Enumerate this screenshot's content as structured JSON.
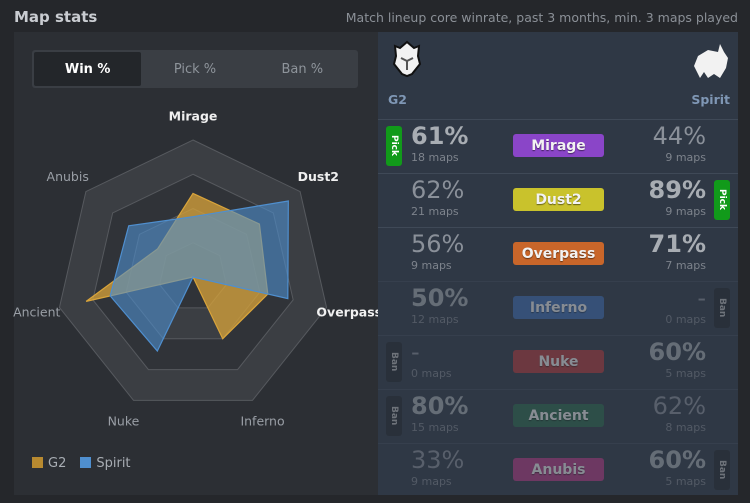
{
  "header": {
    "title": "Map stats",
    "subtitle": "Match lineup core winrate, past 3 months, min. 3 maps played"
  },
  "tabs": [
    {
      "label": "Win %",
      "active": true
    },
    {
      "label": "Pick %"
    },
    {
      "label": "Ban %"
    }
  ],
  "teams": {
    "left": "G2",
    "right": "Spirit"
  },
  "chart_data": {
    "type": "radar",
    "axes": [
      "Mirage",
      "Dust2",
      "Overpass",
      "Inferno",
      "Nuke",
      "Ancient",
      "Anubis"
    ],
    "range": [
      0,
      100
    ],
    "rings": 4,
    "series": [
      {
        "name": "G2",
        "color": "#d9a43a",
        "values": [
          61,
          62,
          56,
          50,
          0,
          80,
          33
        ]
      },
      {
        "name": "Spirit",
        "color": "#4f8fcf",
        "values": [
          44,
          89,
          71,
          0,
          60,
          62,
          60
        ]
      }
    ],
    "legend": "bottom-left"
  },
  "rows": [
    {
      "map": "Mirage",
      "color": "#8a45c8",
      "left": {
        "pct": "61%",
        "maps": "18 maps",
        "best": true,
        "badge": "Pick"
      },
      "right": {
        "pct": "44%",
        "maps": "9 maps"
      },
      "dim": false
    },
    {
      "map": "Dust2",
      "color": "#c9c22c",
      "left": {
        "pct": "62%",
        "maps": "21 maps"
      },
      "right": {
        "pct": "89%",
        "maps": "9 maps",
        "best": true,
        "badge": "Pick"
      },
      "dim": false
    },
    {
      "map": "Overpass",
      "color": "#c9662a",
      "left": {
        "pct": "56%",
        "maps": "9 maps"
      },
      "right": {
        "pct": "71%",
        "maps": "7 maps",
        "best": true
      },
      "dim": false
    },
    {
      "map": "Inferno",
      "color": "#3f6fb5",
      "left": {
        "pct": "50%",
        "maps": "12 maps",
        "best": true
      },
      "right": {
        "pct": "-",
        "maps": "0 maps",
        "badge": "Ban"
      },
      "dim": true
    },
    {
      "map": "Nuke",
      "color": "#b63a3a",
      "left": {
        "pct": "-",
        "maps": "0 maps",
        "badge": "Ban"
      },
      "right": {
        "pct": "60%",
        "maps": "5 maps",
        "best": true
      },
      "dim": true
    },
    {
      "map": "Ancient",
      "color": "#2c6a4c",
      "left": {
        "pct": "80%",
        "maps": "15 maps",
        "best": true,
        "badge": "Ban"
      },
      "right": {
        "pct": "62%",
        "maps": "8 maps"
      },
      "dim": true
    },
    {
      "map": "Anubis",
      "color": "#b83a85",
      "left": {
        "pct": "33%",
        "maps": "9 maps"
      },
      "right": {
        "pct": "60%",
        "maps": "5 maps",
        "best": true,
        "badge": "Ban"
      },
      "dim": true
    }
  ]
}
